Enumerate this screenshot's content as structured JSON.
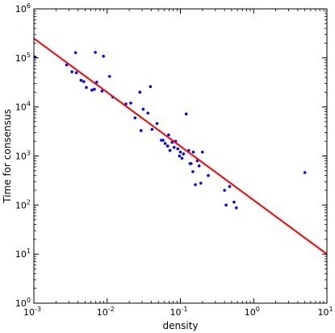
{
  "chart_data": {
    "type": "scatter",
    "title": "",
    "xlabel": "density",
    "ylabel": "Time for consensus",
    "x_scale": "log",
    "y_scale": "log",
    "xlim": [
      0.001,
      10
    ],
    "ylim": [
      1,
      1000000
    ],
    "grid": false,
    "x_ticks": [
      {
        "value": 0.001,
        "base": "10",
        "exp": "-3"
      },
      {
        "value": 0.01,
        "base": "10",
        "exp": "-2"
      },
      {
        "value": 0.1,
        "base": "10",
        "exp": "-1"
      },
      {
        "value": 1,
        "base": "10",
        "exp": "0"
      },
      {
        "value": 10,
        "base": "10",
        "exp": "1"
      }
    ],
    "y_ticks": [
      {
        "value": 1,
        "base": "10",
        "exp": "0"
      },
      {
        "value": 10,
        "base": "10",
        "exp": "1"
      },
      {
        "value": 100,
        "base": "10",
        "exp": "2"
      },
      {
        "value": 1000,
        "base": "10",
        "exp": "3"
      },
      {
        "value": 10000,
        "base": "10",
        "exp": "4"
      },
      {
        "value": 100000,
        "base": "10",
        "exp": "5"
      },
      {
        "value": 1000000,
        "base": "10",
        "exp": "6"
      }
    ],
    "points": [
      [
        0.00104,
        104000
      ],
      [
        0.0028,
        72000
      ],
      [
        0.0033,
        52000
      ],
      [
        0.0037,
        128000
      ],
      [
        0.0038,
        50000
      ],
      [
        0.0044,
        35000
      ],
      [
        0.0048,
        33000
      ],
      [
        0.0052,
        25000
      ],
      [
        0.0062,
        22000
      ],
      [
        0.0067,
        23000
      ],
      [
        0.0069,
        130000
      ],
      [
        0.0072,
        32000
      ],
      [
        0.0085,
        21000
      ],
      [
        0.0089,
        108000
      ],
      [
        0.0108,
        42000
      ],
      [
        0.0119,
        16000
      ],
      [
        0.018,
        11500
      ],
      [
        0.021,
        12000
      ],
      [
        0.024,
        6000
      ],
      [
        0.028,
        20000
      ],
      [
        0.029,
        3300
      ],
      [
        0.031,
        9000
      ],
      [
        0.036,
        7500
      ],
      [
        0.039,
        26000
      ],
      [
        0.041,
        3500
      ],
      [
        0.048,
        4600
      ],
      [
        0.055,
        2100
      ],
      [
        0.058,
        2100
      ],
      [
        0.062,
        1800
      ],
      [
        0.067,
        1600
      ],
      [
        0.069,
        2700
      ],
      [
        0.072,
        1300
      ],
      [
        0.077,
        1900
      ],
      [
        0.082,
        1500
      ],
      [
        0.086,
        2000
      ],
      [
        0.092,
        1400
      ],
      [
        0.097,
        1000
      ],
      [
        0.1,
        1200
      ],
      [
        0.105,
        900
      ],
      [
        0.11,
        1100
      ],
      [
        0.12,
        7200
      ],
      [
        0.13,
        1300
      ],
      [
        0.135,
        700
      ],
      [
        0.14,
        700
      ],
      [
        0.15,
        1200
      ],
      [
        0.148,
        480
      ],
      [
        0.16,
        260
      ],
      [
        0.17,
        800
      ],
      [
        0.18,
        630
      ],
      [
        0.19,
        280
      ],
      [
        0.2,
        1200
      ],
      [
        0.24,
        400
      ],
      [
        0.4,
        200
      ],
      [
        0.42,
        100
      ],
      [
        0.47,
        240
      ],
      [
        0.54,
        115
      ],
      [
        0.58,
        88
      ],
      [
        5.0,
        460
      ]
    ],
    "fit_line": {
      "x": [
        0.001,
        10
      ],
      "y": [
        250000,
        10
      ],
      "color": "#ff0000"
    },
    "point_color": "#0000ff"
  }
}
